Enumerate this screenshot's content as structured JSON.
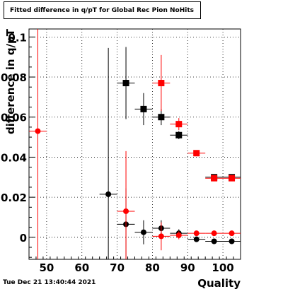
{
  "chart_data": {
    "type": "scatter",
    "title": "Fitted difference in q/pT for Global Rec Pion NoHits",
    "xlabel": "Quality",
    "ylabel": "difference in q/pT",
    "xlim": [
      45,
      105
    ],
    "ylim": [
      -0.011,
      0.104
    ],
    "x_ticks": [
      50,
      60,
      70,
      80,
      90,
      100
    ],
    "y_ticks": [
      0,
      0.02,
      0.04,
      0.06,
      0.08,
      0.1
    ],
    "grid": true,
    "series": [
      {
        "marker": "square",
        "color": "#000000",
        "points": [
          {
            "x": 72.5,
            "y": 0.077,
            "xerr": 2.5,
            "yerr": 0.018
          },
          {
            "x": 77.5,
            "y": 0.064,
            "xerr": 2.5,
            "yerr": 0.008
          },
          {
            "x": 82.5,
            "y": 0.06,
            "xerr": 2.5,
            "yerr": 0.004
          },
          {
            "x": 87.5,
            "y": 0.051,
            "xerr": 2.5,
            "yerr": 0.002
          },
          {
            "x": 97.5,
            "y": 0.03,
            "xerr": 2.5,
            "yerr": 0.001
          },
          {
            "x": 102.5,
            "y": 0.03,
            "xerr": 2.5,
            "yerr": 0.001
          }
        ]
      },
      {
        "marker": "circle",
        "color": "#000000",
        "points": [
          {
            "x": 67.5,
            "y": 0.0215,
            "xerr": 2.5,
            "yerr": 0.073
          },
          {
            "x": 72.5,
            "y": 0.0065,
            "xerr": 2.5,
            "yerr": 0.018
          },
          {
            "x": 77.5,
            "y": 0.0025,
            "xerr": 2.5,
            "yerr": 0.006
          },
          {
            "x": 82.5,
            "y": 0.0045,
            "xerr": 2.5,
            "yerr": 0.004
          },
          {
            "x": 87.5,
            "y": 0.002,
            "xerr": 2.5,
            "yerr": 0.002
          },
          {
            "x": 92.5,
            "y": -0.001,
            "xerr": 2.5,
            "yerr": 0.001
          },
          {
            "x": 97.5,
            "y": -0.002,
            "xerr": 2.5,
            "yerr": 0.001
          },
          {
            "x": 102.5,
            "y": -0.002,
            "xerr": 2.5,
            "yerr": 0.001
          }
        ]
      },
      {
        "marker": "square",
        "color": "#ff0000",
        "points": [
          {
            "x": 82.5,
            "y": 0.077,
            "xerr": 2.5,
            "yerr": 0.014
          },
          {
            "x": 87.5,
            "y": 0.0565,
            "xerr": 2.5,
            "yerr": 0.003
          },
          {
            "x": 92.5,
            "y": 0.042,
            "xerr": 2.5,
            "yerr": 0.001
          },
          {
            "x": 97.5,
            "y": 0.0295,
            "xerr": 2.5,
            "yerr": 0.001
          },
          {
            "x": 102.5,
            "y": 0.0295,
            "xerr": 2.5,
            "yerr": 0.001
          }
        ]
      },
      {
        "marker": "circle",
        "color": "#ff0000",
        "points": [
          {
            "x": 47.5,
            "y": 0.053,
            "xerr": 2.5,
            "yerr": 0.25
          },
          {
            "x": 72.5,
            "y": 0.013,
            "xerr": 2.5,
            "yerr": 0.03
          },
          {
            "x": 82.5,
            "y": 0.0005,
            "xerr": 2.5,
            "yerr": 0.007
          },
          {
            "x": 87.5,
            "y": 0.001,
            "xerr": 2.5,
            "yerr": 0.002
          },
          {
            "x": 92.5,
            "y": 0.002,
            "xerr": 2.5,
            "yerr": 0.001
          },
          {
            "x": 97.5,
            "y": 0.002,
            "xerr": 2.5,
            "yerr": 0.001
          },
          {
            "x": 102.5,
            "y": 0.002,
            "xerr": 2.5,
            "yerr": 0.001
          }
        ]
      }
    ]
  },
  "timestamp": "Tue Dec 21 13:40:44 2021"
}
